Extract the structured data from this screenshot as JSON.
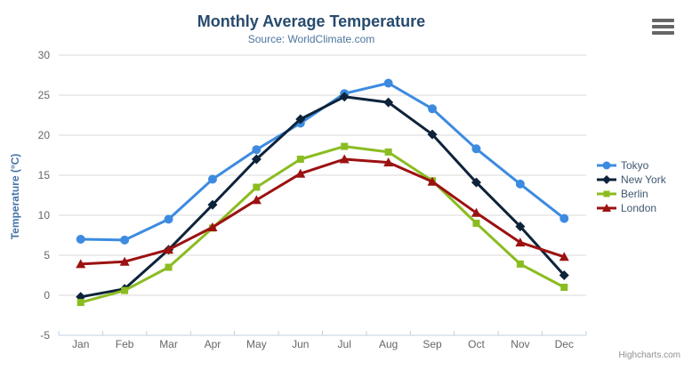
{
  "chart_data": {
    "type": "line",
    "title": "Monthly Average Temperature",
    "subtitle": "Source: WorldClimate.com",
    "ylabel": "Temperature (°C)",
    "ylim": [
      -5,
      30
    ],
    "ytick_step": 5,
    "grid": true,
    "legend_position": "right",
    "categories": [
      "Jan",
      "Feb",
      "Mar",
      "Apr",
      "May",
      "Jun",
      "Jul",
      "Aug",
      "Sep",
      "Oct",
      "Nov",
      "Dec"
    ],
    "series": [
      {
        "name": "Tokyo",
        "color": "#3d8be0",
        "marker": "circle",
        "values": [
          7.0,
          6.9,
          9.5,
          14.5,
          18.2,
          21.5,
          25.2,
          26.5,
          23.3,
          18.3,
          13.9,
          9.6
        ]
      },
      {
        "name": "New York",
        "color": "#0d233a",
        "marker": "diamond",
        "values": [
          -0.2,
          0.8,
          5.7,
          11.3,
          17.0,
          22.0,
          24.8,
          24.1,
          20.1,
          14.1,
          8.6,
          2.5
        ]
      },
      {
        "name": "Berlin",
        "color": "#8bbc21",
        "marker": "square",
        "values": [
          -0.9,
          0.6,
          3.5,
          8.4,
          13.5,
          17.0,
          18.6,
          17.9,
          14.3,
          9.0,
          3.9,
          1.0
        ]
      },
      {
        "name": "London",
        "color": "#9c1111",
        "marker": "triangle",
        "values": [
          3.9,
          4.2,
          5.7,
          8.5,
          11.9,
          15.2,
          17.0,
          16.6,
          14.2,
          10.3,
          6.6,
          4.8
        ]
      }
    ],
    "axis_colors": {
      "grid": "#d8d8d8",
      "axis_line": "#c0d0e0"
    }
  },
  "ui": {
    "credits": "Highcharts.com",
    "context_menu_icon": "hamburger-menu"
  }
}
